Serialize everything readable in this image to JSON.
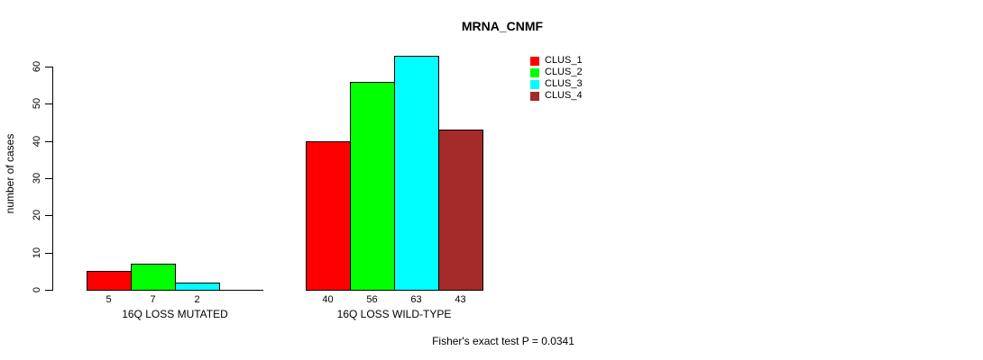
{
  "title": "MRNA_CNMF",
  "footer": "Fisher's exact test P = 0.0341",
  "y_axis": {
    "label": "number of cases",
    "ticks": [
      0,
      10,
      20,
      30,
      40,
      50,
      60
    ]
  },
  "legend": {
    "items": [
      {
        "label": "CLUS_1",
        "color": "#FF0000"
      },
      {
        "label": "CLUS_2",
        "color": "#00FF00"
      },
      {
        "label": "CLUS_3",
        "color": "#00FFFF"
      },
      {
        "label": "CLUS_4",
        "color": "#A52A2A"
      }
    ]
  },
  "chart_data": {
    "type": "bar",
    "title": "MRNA_CNMF",
    "xlabel": "",
    "ylabel": "number of cases",
    "ylim": [
      0,
      60
    ],
    "grid": false,
    "legend_position": "top-right",
    "categories": [
      "16Q LOSS MUTATED",
      "16Q LOSS WILD-TYPE"
    ],
    "series": [
      {
        "name": "CLUS_1",
        "color": "#FF0000",
        "values": [
          5,
          40
        ]
      },
      {
        "name": "CLUS_2",
        "color": "#00FF00",
        "values": [
          7,
          56
        ]
      },
      {
        "name": "CLUS_3",
        "color": "#00FFFF",
        "values": [
          2,
          63
        ]
      },
      {
        "name": "CLUS_4",
        "color": "#A52A2A",
        "values": [
          0,
          43
        ]
      }
    ],
    "bar_labels": [
      [
        "5",
        "7",
        "2",
        ""
      ],
      [
        "40",
        "56",
        "63",
        "43"
      ]
    ],
    "annotation": "Fisher's exact test P = 0.0341"
  }
}
